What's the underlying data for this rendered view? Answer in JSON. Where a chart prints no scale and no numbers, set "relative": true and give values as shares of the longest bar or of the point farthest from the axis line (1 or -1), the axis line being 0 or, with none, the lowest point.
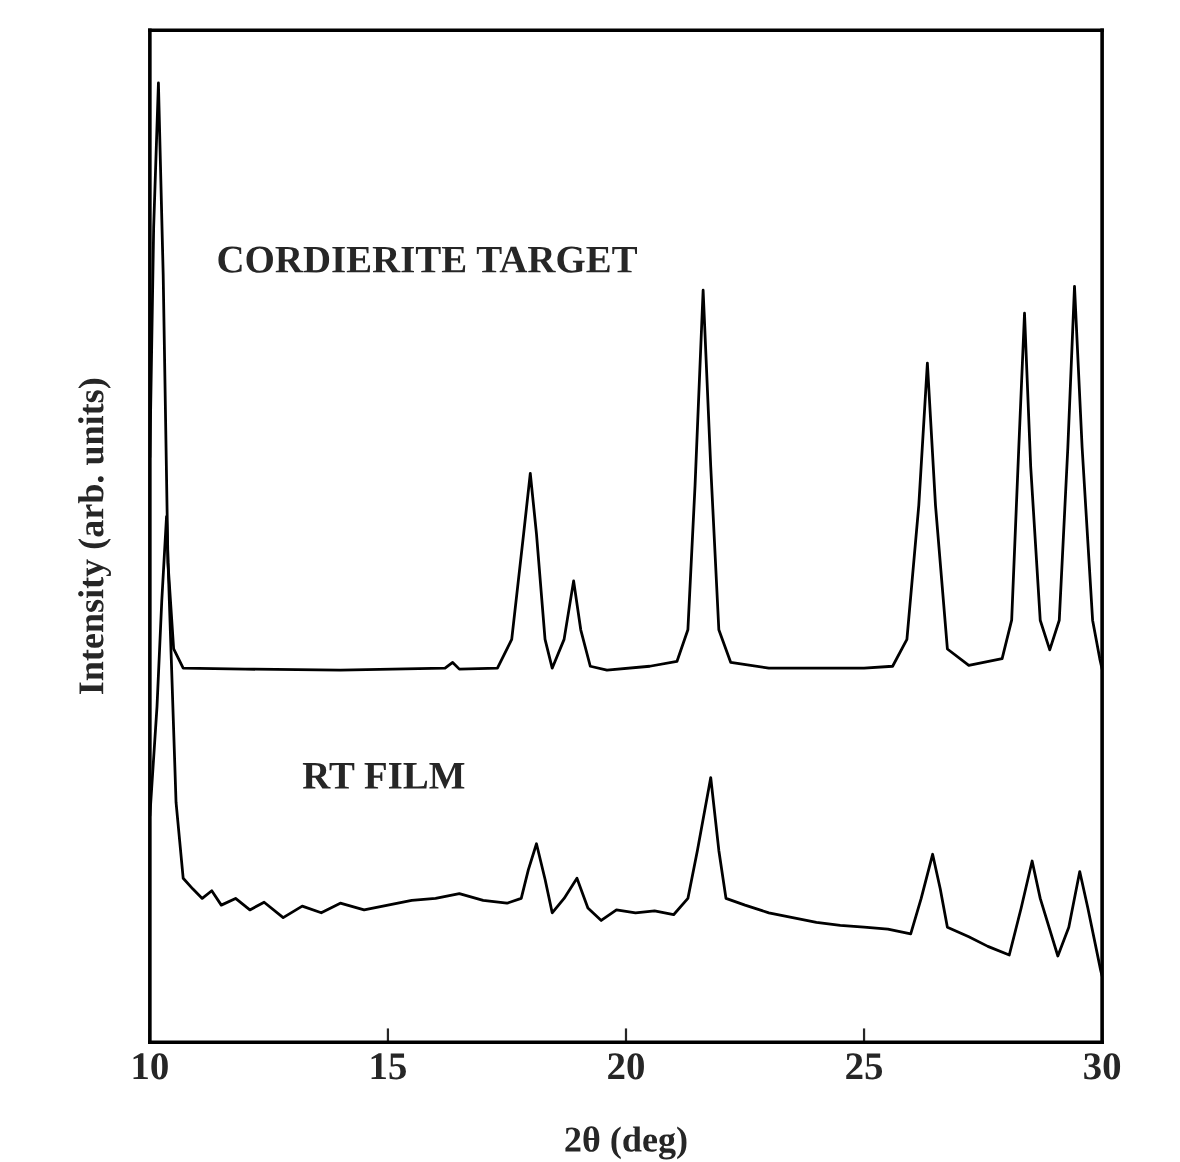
{
  "chart_data": {
    "type": "line",
    "xlabel": "2θ (deg)",
    "ylabel": "Intensity (arb. units)",
    "relative": true,
    "xlim": [
      10,
      30
    ],
    "xticks": [
      10,
      15,
      20,
      25,
      30
    ],
    "grid": false,
    "marker": "none",
    "line_style": "solid",
    "annotations": [
      "CORDIERITE TARGET",
      "RT FILM"
    ],
    "series": [
      {
        "color": "#000000",
        "x": [
          10.0,
          10.08,
          10.18,
          10.28,
          10.38,
          10.5,
          10.7,
          12,
          14,
          16.2,
          16.36,
          16.5,
          17.3,
          17.6,
          17.85,
          17.99,
          18.12,
          18.3,
          18.45,
          18.7,
          18.9,
          19.05,
          19.25,
          19.6,
          20.5,
          21.07,
          21.3,
          21.45,
          21.62,
          21.78,
          21.95,
          22.2,
          23,
          25,
          25.6,
          25.9,
          26.15,
          26.33,
          26.5,
          26.75,
          27.2,
          27.9,
          28.1,
          28.25,
          28.37,
          28.5,
          28.7,
          28.9,
          29.1,
          29.28,
          29.42,
          29.58,
          29.8,
          29.95,
          30.0
        ],
        "values": [
          0.61,
          0.85,
          1.0,
          0.8,
          0.5,
          0.41,
          0.39,
          0.389,
          0.388,
          0.39,
          0.396,
          0.389,
          0.39,
          0.42,
          0.53,
          0.593,
          0.53,
          0.42,
          0.39,
          0.42,
          0.481,
          0.43,
          0.392,
          0.388,
          0.392,
          0.397,
          0.43,
          0.58,
          0.784,
          0.6,
          0.43,
          0.396,
          0.39,
          0.39,
          0.392,
          0.42,
          0.56,
          0.708,
          0.56,
          0.41,
          0.393,
          0.4,
          0.44,
          0.62,
          0.76,
          0.6,
          0.44,
          0.409,
          0.44,
          0.62,
          0.788,
          0.62,
          0.44,
          0.4,
          0.389
        ]
      },
      {
        "color": "#000000",
        "x": [
          10.0,
          10.15,
          10.25,
          10.35,
          10.45,
          10.55,
          10.7,
          10.9,
          11.1,
          11.3,
          11.5,
          11.8,
          12.1,
          12.4,
          12.8,
          13.2,
          13.6,
          14.0,
          14.5,
          15.0,
          15.5,
          16.0,
          16.5,
          17.0,
          17.5,
          17.8,
          17.95,
          18.12,
          18.3,
          18.45,
          18.7,
          18.97,
          19.2,
          19.48,
          19.8,
          20.2,
          20.6,
          21.0,
          21.3,
          21.5,
          21.78,
          21.95,
          22.1,
          22.5,
          23.0,
          23.5,
          24.0,
          24.5,
          25.0,
          25.5,
          25.98,
          26.2,
          26.44,
          26.6,
          26.75,
          27.2,
          27.6,
          28.05,
          28.3,
          28.53,
          28.7,
          29.07,
          29.3,
          29.53,
          29.7,
          29.97,
          30.0
        ],
        "values": [
          0.236,
          0.35,
          0.46,
          0.548,
          0.4,
          0.25,
          0.171,
          0.16,
          0.15,
          0.158,
          0.143,
          0.15,
          0.138,
          0.146,
          0.13,
          0.142,
          0.135,
          0.145,
          0.138,
          0.143,
          0.148,
          0.15,
          0.155,
          0.148,
          0.145,
          0.15,
          0.18,
          0.207,
          0.17,
          0.135,
          0.15,
          0.171,
          0.14,
          0.127,
          0.138,
          0.135,
          0.137,
          0.133,
          0.15,
          0.2,
          0.276,
          0.2,
          0.15,
          0.143,
          0.135,
          0.13,
          0.125,
          0.122,
          0.12,
          0.118,
          0.113,
          0.15,
          0.196,
          0.16,
          0.12,
          0.11,
          0.1,
          0.091,
          0.14,
          0.189,
          0.15,
          0.09,
          0.12,
          0.178,
          0.14,
          0.075,
          0.069
        ]
      }
    ]
  }
}
